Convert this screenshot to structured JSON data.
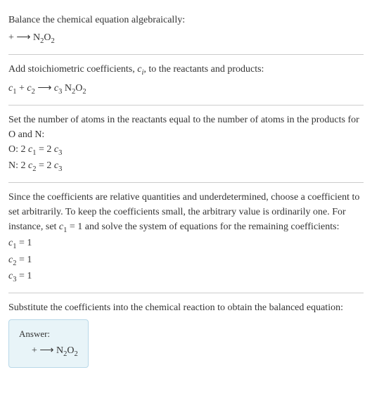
{
  "section1": {
    "line1": "Balance the chemical equation algebraically:",
    "line2_prefix": " + ⟶ N",
    "line2_sub1": "2",
    "line2_mid": "O",
    "line2_sub2": "2"
  },
  "section2": {
    "line1_prefix": "Add stoichiometric coefficients, ",
    "line1_ci": "c",
    "line1_ci_sub": "i",
    "line1_suffix": ", to the reactants and products:",
    "line2_c1": "c",
    "line2_c1sub": "1",
    "line2_plus": " + ",
    "line2_c2": "c",
    "line2_c2sub": "2",
    "line2_arrow": " ⟶ ",
    "line2_c3": "c",
    "line2_c3sub": "3",
    "line2_space": " N",
    "line2_nsub": "2",
    "line2_o": "O",
    "line2_osub": "2"
  },
  "section3": {
    "line1": "Set the number of atoms in the reactants equal to the number of atoms in the products for O and N:",
    "o_label": "O:  2 ",
    "o_c1": "c",
    "o_c1sub": "1",
    "o_eq": " = 2 ",
    "o_c3": "c",
    "o_c3sub": "3",
    "n_label": "N:  2 ",
    "n_c2": "c",
    "n_c2sub": "2",
    "n_eq": " = 2 ",
    "n_c3": "c",
    "n_c3sub": "3"
  },
  "section4": {
    "line1_prefix": "Since the coefficients are relative quantities and underdetermined, choose a coefficient to set arbitrarily. To keep the coefficients small, the arbitrary value is ordinarily one. For instance, set ",
    "line1_c1": "c",
    "line1_c1sub": "1",
    "line1_suffix": " = 1 and solve the system of equations for the remaining coefficients:",
    "eq1_c": "c",
    "eq1_sub": "1",
    "eq1_val": " = 1",
    "eq2_c": "c",
    "eq2_sub": "2",
    "eq2_val": " = 1",
    "eq3_c": "c",
    "eq3_sub": "3",
    "eq3_val": " = 1"
  },
  "section5": {
    "line1": "Substitute the coefficients into the chemical reaction to obtain the balanced equation:",
    "answer_label": "Answer:",
    "answer_prefix": " + ⟶ N",
    "answer_sub1": "2",
    "answer_mid": "O",
    "answer_sub2": "2"
  },
  "colors": {
    "text": "#333333",
    "divider": "#cccccc",
    "answer_bg": "#e8f4f8",
    "answer_border": "#b8d8e8"
  }
}
